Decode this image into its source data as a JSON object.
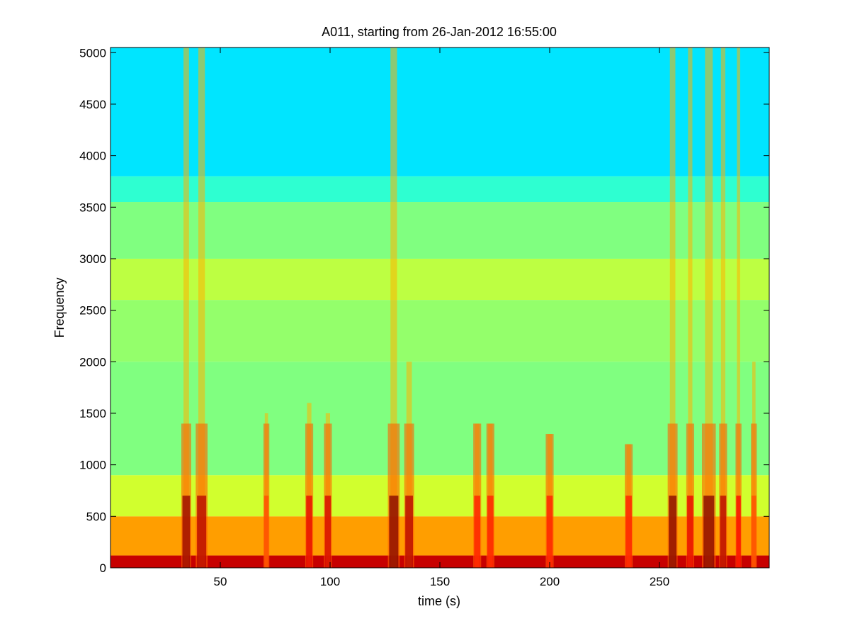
{
  "chart_data": {
    "type": "heatmap",
    "title": "A011, starting from 26-Jan-2012 16:55:00",
    "xlabel": "time (s)",
    "ylabel": "Frequency",
    "xlim": [
      0,
      300
    ],
    "ylim": [
      0,
      5050
    ],
    "x_ticks": [
      50,
      100,
      150,
      200,
      250
    ],
    "y_ticks": [
      0,
      500,
      1000,
      1500,
      2000,
      2500,
      3000,
      3500,
      4000,
      4500,
      5000
    ],
    "colormap": "jet",
    "colors": {
      "high_freq": "#2ecfd6",
      "mid_freq": "#4fe3a8",
      "low_freq": "#f2f23a",
      "peak": "#d9261c"
    },
    "energy_bands": [
      {
        "f_from": 0,
        "f_to": 120,
        "level": 0.93
      },
      {
        "f_from": 120,
        "f_to": 500,
        "level": 0.72
      },
      {
        "f_from": 500,
        "f_to": 900,
        "level": 0.58
      },
      {
        "f_from": 900,
        "f_to": 2000,
        "level": 0.5
      },
      {
        "f_from": 2000,
        "f_to": 2600,
        "level": 0.52
      },
      {
        "f_from": 2600,
        "f_to": 3000,
        "level": 0.56
      },
      {
        "f_from": 3000,
        "f_to": 3550,
        "level": 0.5
      },
      {
        "f_from": 3550,
        "f_to": 3800,
        "level": 0.42
      },
      {
        "f_from": 3800,
        "f_to": 5050,
        "level": 0.35
      }
    ],
    "broadband_events": [
      {
        "time": 34.5,
        "width": 2.5,
        "level": 0.98,
        "f_max": 5050
      },
      {
        "time": 41.5,
        "width": 3.0,
        "level": 0.95,
        "f_max": 5050
      },
      {
        "time": 71.0,
        "width": 1.5,
        "level": 0.8,
        "f_max": 1500
      },
      {
        "time": 90.5,
        "width": 2.0,
        "level": 0.9,
        "f_max": 1600
      },
      {
        "time": 99.0,
        "width": 2.0,
        "level": 0.92,
        "f_max": 1500
      },
      {
        "time": 129.0,
        "width": 3.0,
        "level": 1.0,
        "f_max": 5050
      },
      {
        "time": 136.0,
        "width": 2.5,
        "level": 0.95,
        "f_max": 2000
      },
      {
        "time": 167.0,
        "width": 2.0,
        "level": 0.85,
        "f_max": 1400
      },
      {
        "time": 173.0,
        "width": 2.0,
        "level": 0.85,
        "f_max": 1400
      },
      {
        "time": 200.0,
        "width": 2.0,
        "level": 0.85,
        "f_max": 1300
      },
      {
        "time": 236.0,
        "width": 2.0,
        "level": 0.85,
        "f_max": 1200
      },
      {
        "time": 256.0,
        "width": 2.5,
        "level": 1.0,
        "f_max": 5050
      },
      {
        "time": 264.0,
        "width": 2.0,
        "level": 0.9,
        "f_max": 5050
      },
      {
        "time": 272.5,
        "width": 3.5,
        "level": 1.0,
        "f_max": 5050
      },
      {
        "time": 279.0,
        "width": 2.0,
        "level": 0.95,
        "f_max": 5050
      },
      {
        "time": 286.0,
        "width": 1.5,
        "level": 0.88,
        "f_max": 5050
      },
      {
        "time": 293.0,
        "width": 1.5,
        "level": 0.8,
        "f_max": 2000
      }
    ]
  }
}
